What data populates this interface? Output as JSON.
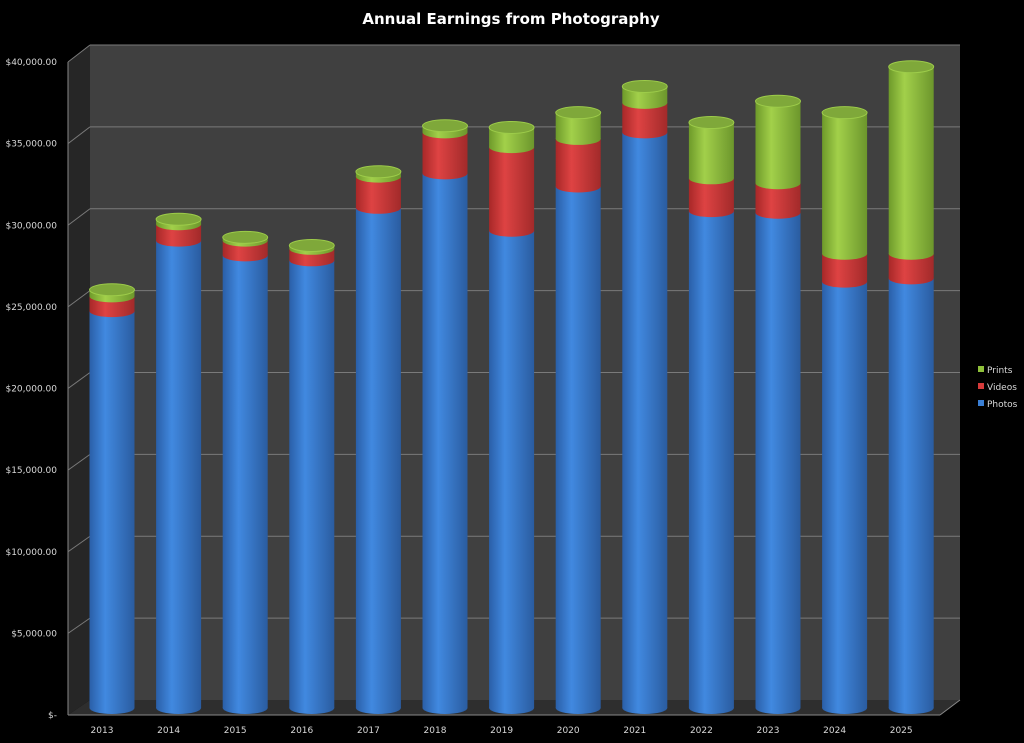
{
  "chart_data": {
    "type": "bar",
    "subtype": "3d-stacked-cylinder",
    "title": "Annual Earnings from Photography",
    "xlabel": "",
    "ylabel": "",
    "ylim": [
      0,
      40000
    ],
    "y_ticks": [
      0,
      5000,
      10000,
      15000,
      20000,
      25000,
      30000,
      35000,
      40000
    ],
    "y_tick_labels": [
      "$-",
      "$5,000.00",
      "$10,000.00",
      "$15,000.00",
      "$20,000.00",
      "$25,000.00",
      "$30,000.00",
      "$35,000.00",
      "$40,000.00"
    ],
    "grid": true,
    "legend_position": "right",
    "categories": [
      "2013",
      "2014",
      "2015",
      "2016",
      "2017",
      "2018",
      "2019",
      "2020",
      "2021",
      "2022",
      "2023",
      "2024",
      "2025"
    ],
    "series": [
      {
        "name": "Photos",
        "color": "#3a7fd5",
        "values": [
          24200,
          28500,
          27600,
          27300,
          30500,
          32600,
          29100,
          31800,
          35100,
          30300,
          30200,
          26000,
          26200
        ]
      },
      {
        "name": "Videos",
        "color": "#d63a3a",
        "values": [
          900,
          1000,
          900,
          700,
          1900,
          2500,
          5100,
          2900,
          1800,
          2000,
          1800,
          1700,
          1500
        ]
      },
      {
        "name": "Prints",
        "color": "#8fc13a",
        "values": [
          400,
          300,
          200,
          200,
          300,
          400,
          1200,
          1600,
          1000,
          3400,
          5000,
          8600,
          11400
        ]
      }
    ],
    "legend": [
      "Prints",
      "Videos",
      "Photos"
    ]
  }
}
